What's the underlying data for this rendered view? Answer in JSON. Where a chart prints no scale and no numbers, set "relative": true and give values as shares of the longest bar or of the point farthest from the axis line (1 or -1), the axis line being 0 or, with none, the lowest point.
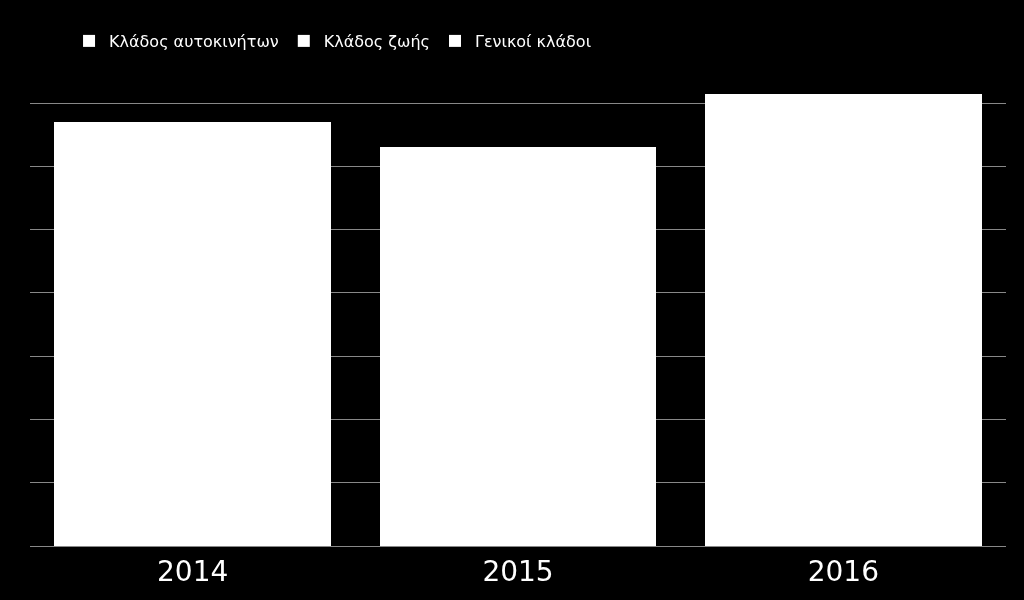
{
  "chart_data": {
    "type": "bar",
    "relative": true,
    "stacked": true,
    "categories": [
      "2014",
      "2015",
      "2016"
    ],
    "series": [
      {
        "name": "Κλάδος αυτοκινήτων",
        "color": "#ffffff",
        "values": [
          0.939,
          0.882,
          1
        ]
      },
      {
        "name": "Κλάδος ζωής",
        "color": "#ffffff",
        "values": [
          null,
          null,
          null
        ]
      },
      {
        "name": "Γενικοί κλάδοι",
        "color": "#ffffff",
        "values": [
          null,
          null,
          null
        ]
      }
    ],
    "grid": "y",
    "legend": "top left"
  }
}
